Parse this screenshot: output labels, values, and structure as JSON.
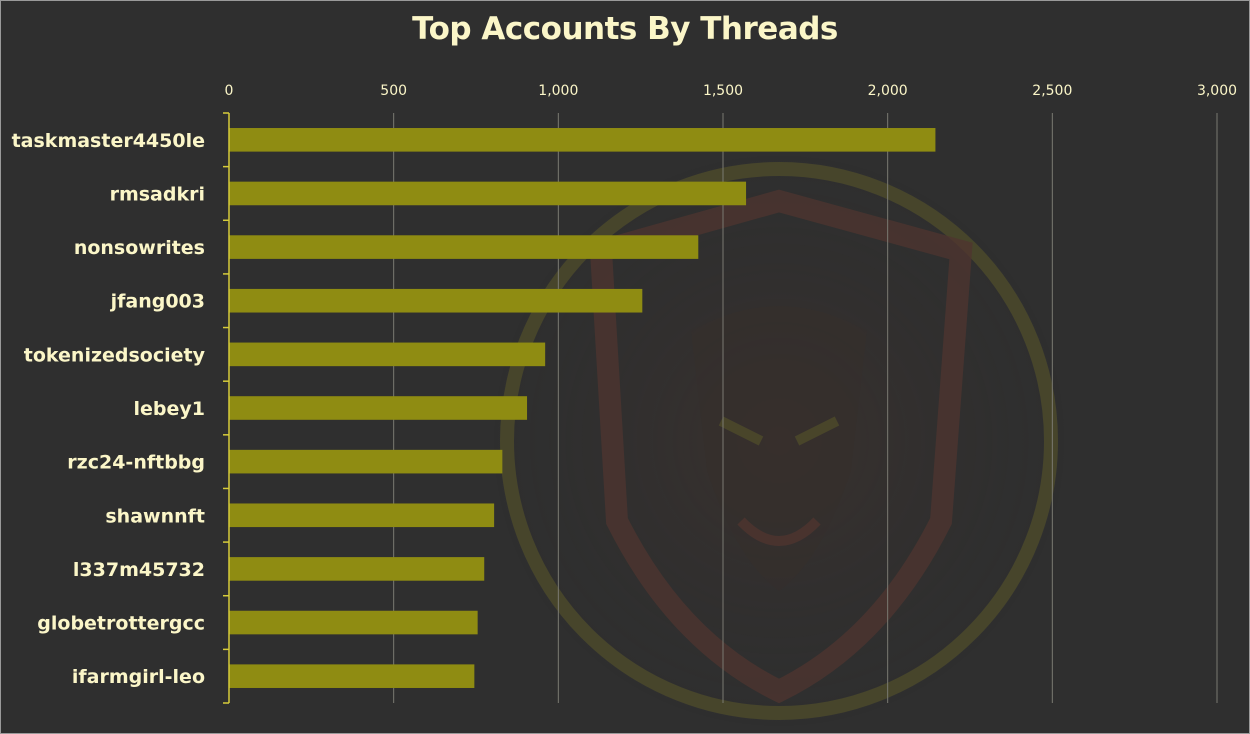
{
  "chart_data": {
    "type": "bar",
    "orientation": "horizontal",
    "title": "Top Accounts By Threads",
    "categories": [
      "taskmaster4450le",
      "rmsadkri",
      "nonsowrites",
      "jfang003",
      "tokenizedsociety",
      "lebey1",
      "rzc24-nftbbg",
      "shawnnft",
      "l337m45732",
      "globetrottergcc",
      "ifarmgirl-leo"
    ],
    "series": [
      {
        "values": [
          2145,
          1570,
          1425,
          1255,
          960,
          905,
          830,
          805,
          775,
          755,
          745
        ]
      }
    ],
    "xlim": [
      0,
      3000
    ],
    "x_ticks": [
      0,
      500,
      1000,
      1500,
      2000,
      2500,
      3000
    ],
    "x_tick_labels": [
      "0",
      "500",
      "1,000",
      "1,500",
      "2,000",
      "2,500",
      "3,000"
    ],
    "x_axis_position": "top",
    "grid": true,
    "legend": "none",
    "colors": {
      "background": "#2f2f2f",
      "bar": "#8f8c12",
      "text": "#fbf6c8",
      "gridline": "#7a7a72",
      "axis": "#d6cc3a"
    }
  }
}
